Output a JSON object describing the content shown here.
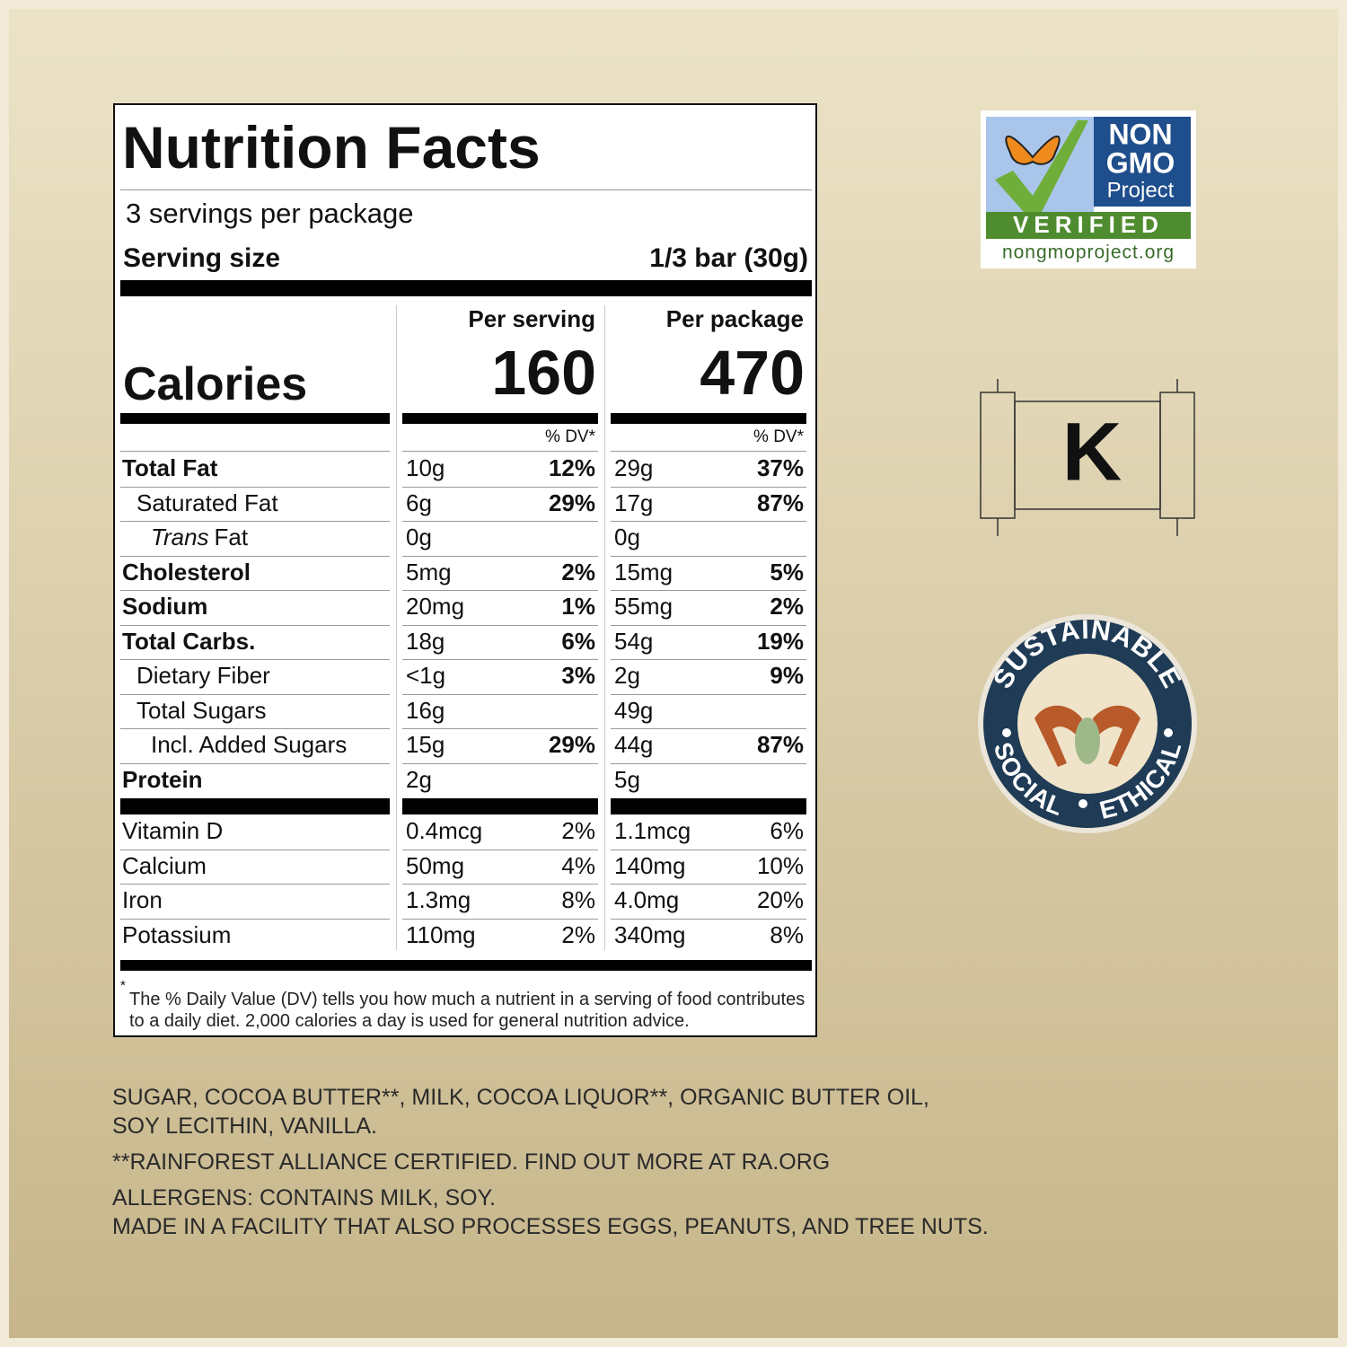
{
  "label": {
    "title": "Nutrition Facts",
    "servings": "3 servings per package",
    "serving_size_label": "Serving size",
    "serving_size": "1/3 bar (30g)",
    "calories_label": "Calories",
    "columns": [
      {
        "header": "Per serving",
        "calories": "160",
        "dv_header": "% DV*"
      },
      {
        "header": "Per package",
        "calories": "470",
        "dv_header": "% DV*"
      }
    ],
    "rows": [
      {
        "name": "Total Fat",
        "bold": true,
        "indent": 0,
        "values": [
          "10g",
          "12%",
          "29g",
          "37%"
        ]
      },
      {
        "name": "Saturated Fat",
        "indent": 1,
        "values": [
          "6g",
          "29%",
          "17g",
          "87%"
        ]
      },
      {
        "name_italic": "Trans",
        "name": "Fat",
        "indent": 1,
        "values": [
          "0g",
          null,
          "0g",
          null
        ]
      },
      {
        "name": "Cholesterol",
        "bold": true,
        "indent": 0,
        "values": [
          "5mg",
          "2%",
          "15mg",
          "5%"
        ]
      },
      {
        "name": "Sodium",
        "bold": true,
        "indent": 0,
        "values": [
          "20mg",
          "1%",
          "55mg",
          "2%"
        ]
      },
      {
        "name": "Total Carbs.",
        "bold": true,
        "indent": 0,
        "values": [
          "18g",
          "6%",
          "54g",
          "19%"
        ]
      },
      {
        "name": "Dietary Fiber",
        "indent": 1,
        "values": [
          "<1g",
          "3%",
          "2g",
          "9%"
        ]
      },
      {
        "name": "Total Sugars",
        "indent": 1,
        "values": [
          "16g",
          null,
          "49g",
          null
        ]
      },
      {
        "name": "Incl. Added Sugars",
        "indent": 2,
        "values": [
          "15g",
          "29%",
          "44g",
          "87%"
        ]
      },
      {
        "name": "Protein",
        "bold": true,
        "indent": 0,
        "values": [
          "2g",
          null,
          "5g",
          null
        ]
      }
    ],
    "vitamins": [
      {
        "name": "Vitamin D",
        "values": [
          "0.4mcg",
          "2%",
          "1.1mcg",
          "6%"
        ]
      },
      {
        "name": "Calcium",
        "values": [
          "50mg",
          "4%",
          "140mg",
          "10%"
        ]
      },
      {
        "name": "Iron",
        "values": [
          "1.3mg",
          "8%",
          "4.0mg",
          "20%"
        ]
      },
      {
        "name": "Potassium",
        "values": [
          "110mg",
          "2%",
          "340mg",
          "8%"
        ]
      }
    ],
    "footnote_mark": "*",
    "footnote": "The % Daily Value (DV) tells you how much a nutrient in a serving of food contributes to a daily diet. 2,000 calories a day is used for general nutrition advice."
  },
  "ingredients": [
    [
      "SUGAR, COCOA BUTTER**, MILK, COCOA LIQUOR**,  ORGANIC BUTTER OIL,",
      "SOY LECITHIN, VANILLA."
    ],
    [
      "**RAINFOREST ALLIANCE CERTIFIED. FIND OUT MORE AT RA.ORG"
    ],
    [
      "ALLERGENS: CONTAINS MILK, SOY.",
      "MADE IN A FACILITY THAT ALSO PROCESSES EGGS, PEANUTS, AND TREE NUTS."
    ]
  ],
  "badges": {
    "non_gmo": {
      "line1": "NON",
      "line2": "GMO",
      "line3": "Project",
      "verified": "VERIFIED",
      "url": "nongmoproject.org"
    },
    "kosher": "K",
    "sustainable": {
      "top": "SUSTAINABLE",
      "left": "SOCIAL",
      "right": "ETHICAL"
    }
  }
}
